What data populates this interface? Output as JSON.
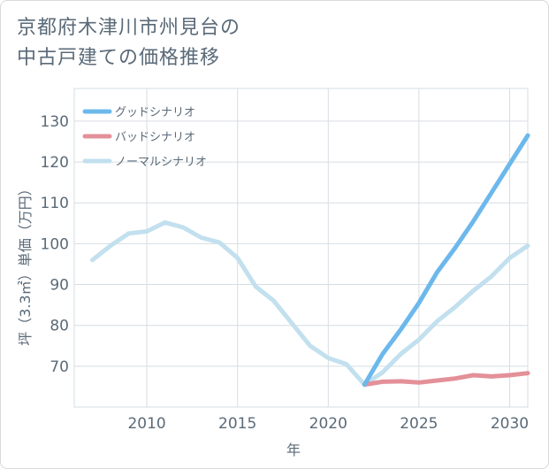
{
  "title_line1": "京都府木津川市州見台の",
  "title_line2": "中古戸建ての価格推移",
  "chart_data": {
    "type": "line",
    "title": "京都府木津川市州見台の中古戸建ての価格推移",
    "xlabel": "年",
    "ylabel": "坪（3.3㎡）単価（万円）",
    "xlim": [
      2006,
      2031
    ],
    "ylim": [
      60,
      138
    ],
    "xticks": [
      2010,
      2015,
      2020,
      2025,
      2030
    ],
    "yticks": [
      70,
      80,
      90,
      100,
      110,
      120,
      130
    ],
    "grid": true,
    "legend_position": "top-left",
    "series": [
      {
        "name": "グッドシナリオ",
        "color": "#6cb8ec",
        "x": [
          2022,
          2023,
          2024,
          2025,
          2026,
          2027,
          2028,
          2029,
          2030,
          2031
        ],
        "y": [
          65.5,
          73,
          79,
          85.5,
          93,
          99,
          105.5,
          112.5,
          119.5,
          126.5
        ]
      },
      {
        "name": "バッドシナリオ",
        "color": "#e39099",
        "x": [
          2022,
          2023,
          2024,
          2025,
          2026,
          2027,
          2028,
          2029,
          2030,
          2031
        ],
        "y": [
          65.5,
          66.2,
          66.3,
          66,
          66.5,
          67,
          67.8,
          67.5,
          67.8,
          68.3
        ]
      },
      {
        "name": "ノーマルシナリオ",
        "color": "#c2e0ee",
        "x": [
          2007,
          2008,
          2009,
          2010,
          2011,
          2012,
          2013,
          2014,
          2015,
          2016,
          2017,
          2018,
          2019,
          2020,
          2021,
          2022,
          2023,
          2024,
          2025,
          2026,
          2027,
          2028,
          2029,
          2030,
          2031
        ],
        "y": [
          96,
          99.5,
          102.5,
          103,
          105.2,
          104,
          101.5,
          100.3,
          96.5,
          89.5,
          86,
          80.5,
          75,
          72,
          70.5,
          65.5,
          68.5,
          73,
          76.5,
          81,
          84.5,
          88.5,
          92,
          96.5,
          99.5
        ]
      }
    ]
  }
}
